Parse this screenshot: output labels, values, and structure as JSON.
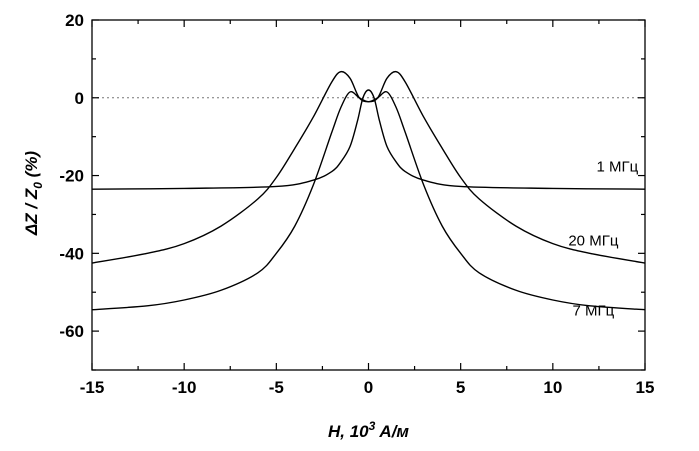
{
  "chart_data": {
    "type": "line",
    "title": "",
    "xlabel": {
      "prefix": "H, 10",
      "sup": "3",
      "suffix": " A/м"
    },
    "ylabel": {
      "prefix": "ΔZ / Z",
      "sub": "0",
      "suffix": " (%)"
    },
    "xlim": [
      -15,
      15
    ],
    "ylim": [
      -70,
      20
    ],
    "xticks": [
      -15,
      -10,
      -5,
      0,
      5,
      10,
      15
    ],
    "yticks": [
      -60,
      -40,
      -20,
      0,
      20
    ],
    "xtick_labels": [
      "-15",
      "-10",
      "-5",
      "0",
      "5",
      "10",
      "15"
    ],
    "ytick_labels": [
      "-60",
      "-40",
      "-20",
      "0",
      "20"
    ],
    "reference_line_y": 0,
    "grid": false,
    "series": [
      {
        "name": "1 МГц",
        "label_at": [
          13.5,
          -19
        ],
        "x": [
          -15,
          -10,
          -5,
          -3,
          -2,
          -1.5,
          -1,
          -0.6,
          -0.3,
          0,
          0.3,
          0.6,
          1,
          1.5,
          2,
          3,
          5,
          10,
          15
        ],
        "y": [
          -23.5,
          -23.3,
          -22.8,
          -21.2,
          -19,
          -16.5,
          -12.5,
          -6,
          0,
          2,
          0,
          -6,
          -12.5,
          -16.5,
          -19,
          -21.2,
          -22.8,
          -23.3,
          -23.5
        ]
      },
      {
        "name": "20 МГц",
        "label_at": [
          12.2,
          -38
        ],
        "x": [
          -15,
          -12,
          -10,
          -8,
          -6,
          -5,
          -4,
          -3,
          -2,
          -1.5,
          -1,
          -0.5,
          0,
          0.5,
          1,
          1.5,
          2,
          3,
          4,
          5,
          6,
          8,
          10,
          12,
          15
        ],
        "y": [
          -42.5,
          -40,
          -37.5,
          -33,
          -26,
          -20.5,
          -13,
          -5,
          4,
          6.7,
          5,
          0,
          -1,
          0,
          5,
          6.7,
          4,
          -5,
          -13,
          -20.5,
          -26,
          -33,
          -37.5,
          -40,
          -42.5
        ]
      },
      {
        "name": "7 МГц",
        "label_at": [
          12.2,
          -56
        ],
        "x": [
          -15,
          -12,
          -10,
          -8,
          -6,
          -5,
          -4,
          -3,
          -2,
          -1.5,
          -1,
          -0.5,
          0,
          0.5,
          1,
          1.5,
          2,
          3,
          4,
          5,
          6,
          8,
          10,
          12,
          15
        ],
        "y": [
          -54.5,
          -53.5,
          -52,
          -49.5,
          -45,
          -40,
          -33,
          -22.5,
          -9,
          -2.5,
          1.5,
          0,
          -1,
          0,
          1.5,
          -2.5,
          -9,
          -22.5,
          -33,
          -40,
          -45,
          -49.5,
          -52,
          -53.5,
          -54.5
        ]
      }
    ]
  }
}
